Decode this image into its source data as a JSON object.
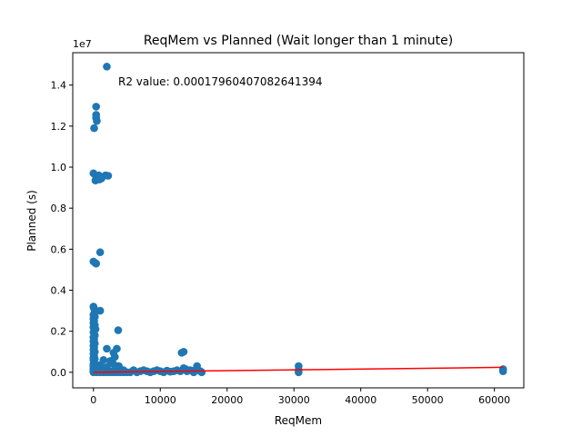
{
  "chart_data": {
    "type": "scatter",
    "title": "ReqMem vs Planned (Wait longer than 1 minute)",
    "xlabel": "ReqMem",
    "ylabel": "Planned (s)",
    "y_offset_label": "1e7",
    "annotation": "R2 value: 0.00017960407082641394",
    "xlim": [
      -3100,
      64400
    ],
    "ylim": [
      -760000,
      15580000
    ],
    "x_ticks": [
      0,
      10000,
      20000,
      30000,
      40000,
      50000,
      60000
    ],
    "x_tick_labels": [
      "0",
      "10000",
      "20000",
      "30000",
      "40000",
      "50000",
      "60000"
    ],
    "y_ticks": [
      0,
      2000000,
      4000000,
      6000000,
      8000000,
      10000000,
      12000000,
      14000000
    ],
    "y_tick_labels": [
      "0.0",
      "0.2",
      "0.4",
      "0.6",
      "0.8",
      "1.0",
      "1.2",
      "1.4"
    ],
    "grid": false,
    "colors": {
      "points": "#1f77b4",
      "regression": "#ff0000"
    },
    "series": [
      {
        "type": "scatter",
        "points": [
          [
            2000,
            14900000
          ],
          [
            400,
            12950000
          ],
          [
            400,
            12550000
          ],
          [
            400,
            12400000
          ],
          [
            500,
            12250000
          ],
          [
            100,
            11900000
          ],
          [
            0,
            9700000
          ],
          [
            400,
            9550000
          ],
          [
            800,
            9600000
          ],
          [
            1200,
            9450000
          ],
          [
            1800,
            9600000
          ],
          [
            2200,
            9580000
          ],
          [
            300,
            9350000
          ],
          [
            900,
            9400000
          ],
          [
            1000,
            5850000
          ],
          [
            0,
            5400000
          ],
          [
            200,
            5350000
          ],
          [
            400,
            5300000
          ],
          [
            0,
            3200000
          ],
          [
            100,
            3100000
          ],
          [
            200,
            3000000
          ],
          [
            300,
            2950000
          ],
          [
            1000,
            3000000
          ],
          [
            0,
            2800000
          ],
          [
            200,
            2700000
          ],
          [
            0,
            2600000
          ],
          [
            100,
            2500000
          ],
          [
            0,
            2400000
          ],
          [
            200,
            2300000
          ],
          [
            0,
            2200000
          ],
          [
            300,
            2100000
          ],
          [
            3700,
            2050000
          ],
          [
            0,
            1950000
          ],
          [
            200,
            1800000
          ],
          [
            0,
            1700000
          ],
          [
            100,
            1600000
          ],
          [
            0,
            1500000
          ],
          [
            200,
            1400000
          ],
          [
            0,
            1300000
          ],
          [
            100,
            1200000
          ],
          [
            2000,
            1150000
          ],
          [
            3500,
            1150000
          ],
          [
            0,
            1100000
          ],
          [
            200,
            1000000
          ],
          [
            3000,
            950000
          ],
          [
            0,
            900000
          ],
          [
            100,
            800000
          ],
          [
            3200,
            750000
          ],
          [
            0,
            700000
          ],
          [
            200,
            650000
          ],
          [
            0,
            600000
          ],
          [
            1500,
            600000
          ],
          [
            2500,
            550000
          ],
          [
            100,
            500000
          ],
          [
            0,
            400000
          ],
          [
            3000,
            400000
          ],
          [
            200,
            350000
          ],
          [
            1000,
            350000
          ],
          [
            0,
            300000
          ],
          [
            3800,
            300000
          ],
          [
            100,
            250000
          ],
          [
            2000,
            250000
          ],
          [
            0,
            200000
          ],
          [
            500,
            200000
          ],
          [
            3500,
            200000
          ],
          [
            0,
            150000
          ],
          [
            1200,
            150000
          ],
          [
            4500,
            100000
          ],
          [
            0,
            100000
          ],
          [
            800,
            100000
          ],
          [
            0,
            50000
          ],
          [
            1500,
            50000
          ],
          [
            2500,
            50000
          ],
          [
            3000,
            50000
          ],
          [
            0,
            0
          ],
          [
            500,
            0
          ],
          [
            1000,
            0
          ],
          [
            1500,
            0
          ],
          [
            2000,
            0
          ],
          [
            2500,
            0
          ],
          [
            3000,
            0
          ],
          [
            3500,
            0
          ],
          [
            4000,
            0
          ],
          [
            4500,
            0
          ],
          [
            5000,
            0
          ],
          [
            5500,
            0
          ],
          [
            6000,
            100000
          ],
          [
            6500,
            0
          ],
          [
            7000,
            50000
          ],
          [
            7500,
            100000
          ],
          [
            8000,
            50000
          ],
          [
            8500,
            0
          ],
          [
            9000,
            50000
          ],
          [
            9500,
            100000
          ],
          [
            10000,
            50000
          ],
          [
            10500,
            0
          ],
          [
            11000,
            80000
          ],
          [
            11500,
            30000
          ],
          [
            12000,
            50000
          ],
          [
            12500,
            100000
          ],
          [
            13000,
            50000
          ],
          [
            13200,
            950000
          ],
          [
            13500,
            1000000
          ],
          [
            13500,
            200000
          ],
          [
            13800,
            150000
          ],
          [
            14000,
            50000
          ],
          [
            14500,
            100000
          ],
          [
            15000,
            0
          ],
          [
            15500,
            300000
          ],
          [
            15200,
            100000
          ],
          [
            16000,
            50000
          ],
          [
            16200,
            0
          ],
          [
            30700,
            0
          ],
          [
            30700,
            100000
          ],
          [
            30700,
            300000
          ],
          [
            61300,
            50000
          ],
          [
            61300,
            150000
          ]
        ]
      },
      {
        "type": "line",
        "points": [
          [
            0,
            0
          ],
          [
            61300,
            240000
          ]
        ]
      }
    ]
  }
}
